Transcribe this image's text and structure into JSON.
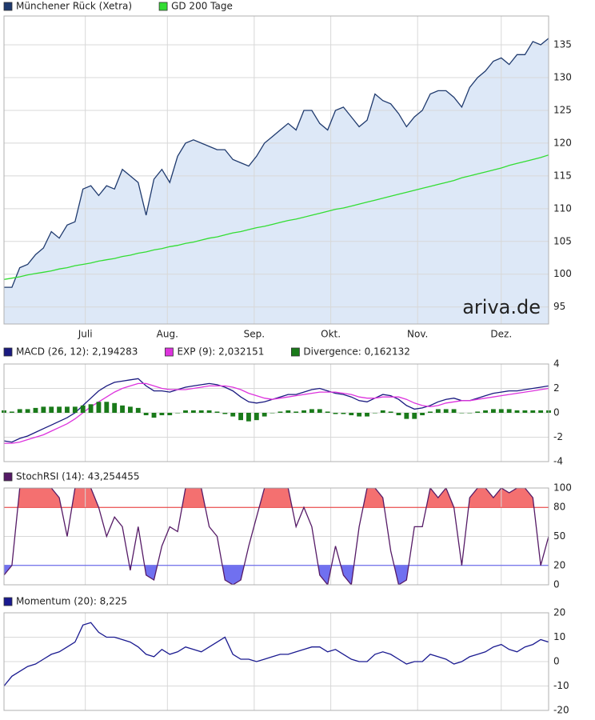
{
  "chart_data": [
    {
      "type": "line",
      "x": [
        0,
        1,
        2,
        3,
        4,
        5,
        6,
        7,
        8,
        9,
        10,
        11,
        12,
        13,
        14,
        15,
        16,
        17,
        18,
        19,
        20,
        21,
        22,
        23,
        24,
        25,
        26,
        27,
        28,
        29,
        30,
        31,
        32,
        33,
        34,
        35,
        36,
        37,
        38,
        39,
        40,
        41,
        42,
        43,
        44,
        45,
        46,
        47,
        48,
        49,
        50,
        51,
        52,
        53,
        54,
        55,
        56,
        57,
        58,
        59,
        60,
        61,
        62,
        63,
        64,
        65,
        66,
        67,
        68,
        69
      ],
      "xlim": [
        0,
        69
      ],
      "xticks": [
        {
          "value": 10.3,
          "label": "Juli"
        },
        {
          "value": 20.7,
          "label": "Aug."
        },
        {
          "value": 31.7,
          "label": "Sep."
        },
        {
          "value": 41.4,
          "label": "Okt."
        },
        {
          "value": 52.4,
          "label": "Nov."
        },
        {
          "value": 63.0,
          "label": "Dez."
        }
      ],
      "ylim": [
        92.4,
        139.4
      ],
      "yticks": [
        95,
        100,
        105,
        110,
        115,
        120,
        125,
        130,
        135
      ],
      "grid": true,
      "annotation": "ariva.de",
      "series": [
        {
          "name": "Münchener Rück (Xetra)",
          "color": "#1f3a6e",
          "fill": "#dde8f7",
          "values": [
            98,
            98,
            101,
            101.5,
            103,
            104,
            106.5,
            105.5,
            107.5,
            108,
            113,
            113.5,
            112,
            113.5,
            113,
            116,
            115,
            114,
            109,
            114.5,
            116,
            114,
            118,
            120,
            120.5,
            120,
            119.5,
            119,
            119,
            117.5,
            117,
            116.5,
            118,
            120,
            121,
            122,
            123,
            122,
            125,
            125,
            123,
            122,
            125,
            125.5,
            124,
            122.5,
            123.5,
            127.5,
            126.5,
            126,
            124.5,
            122.5,
            124,
            125,
            127.5,
            128,
            128,
            127,
            125.5,
            128.5,
            130,
            131,
            132.5,
            133,
            132,
            133.5,
            133.5,
            135.5,
            135,
            136
          ]
        },
        {
          "name": "GD 200 Tage",
          "color": "#33dd33",
          "values": [
            99.2,
            99.4,
            99.6,
            99.9,
            100.1,
            100.3,
            100.5,
            100.8,
            101.0,
            101.3,
            101.5,
            101.7,
            102.0,
            102.2,
            102.4,
            102.7,
            102.9,
            103.2,
            103.4,
            103.7,
            103.9,
            104.2,
            104.4,
            104.7,
            104.9,
            105.2,
            105.5,
            105.7,
            106.0,
            106.3,
            106.5,
            106.8,
            107.1,
            107.3,
            107.6,
            107.9,
            108.2,
            108.4,
            108.7,
            109.0,
            109.3,
            109.6,
            109.9,
            110.1,
            110.4,
            110.7,
            111.0,
            111.3,
            111.6,
            111.9,
            112.2,
            112.5,
            112.8,
            113.1,
            113.4,
            113.7,
            114.0,
            114.3,
            114.7,
            115.0,
            115.3,
            115.6,
            115.9,
            116.2,
            116.6,
            116.9,
            117.2,
            117.5,
            117.8,
            118.2
          ]
        }
      ]
    },
    {
      "type": "line",
      "x": [
        0,
        1,
        2,
        3,
        4,
        5,
        6,
        7,
        8,
        9,
        10,
        11,
        12,
        13,
        14,
        15,
        16,
        17,
        18,
        19,
        20,
        21,
        22,
        23,
        24,
        25,
        26,
        27,
        28,
        29,
        30,
        31,
        32,
        33,
        34,
        35,
        36,
        37,
        38,
        39,
        40,
        41,
        42,
        43,
        44,
        45,
        46,
        47,
        48,
        49,
        50,
        51,
        52,
        53,
        54,
        55,
        56,
        57,
        58,
        59,
        60,
        61,
        62,
        63,
        64,
        65,
        66,
        67,
        68,
        69
      ],
      "xlim": [
        0,
        69
      ],
      "xgrid": [
        10.3,
        20.7,
        31.7,
        41.4,
        52.4,
        63.0
      ],
      "ylim": [
        -4,
        4
      ],
      "yticks": [
        -4,
        -2,
        0,
        2,
        4
      ],
      "grid": true,
      "series": [
        {
          "name": "MACD (26, 12): 2,194283",
          "color": "#1a1a80",
          "values": [
            -2.3,
            -2.4,
            -2.1,
            -1.9,
            -1.6,
            -1.3,
            -1.0,
            -0.7,
            -0.4,
            0.0,
            0.6,
            1.2,
            1.8,
            2.2,
            2.5,
            2.6,
            2.7,
            2.8,
            2.2,
            1.8,
            1.8,
            1.7,
            1.9,
            2.1,
            2.2,
            2.3,
            2.4,
            2.3,
            2.1,
            1.8,
            1.3,
            0.9,
            0.8,
            0.9,
            1.1,
            1.3,
            1.5,
            1.5,
            1.7,
            1.9,
            2.0,
            1.8,
            1.6,
            1.5,
            1.3,
            1.0,
            0.9,
            1.2,
            1.5,
            1.4,
            1.1,
            0.6,
            0.3,
            0.4,
            0.6,
            0.9,
            1.1,
            1.2,
            1.0,
            1.0,
            1.2,
            1.4,
            1.6,
            1.7,
            1.8,
            1.8,
            1.9,
            2.0,
            2.1,
            2.2
          ]
        },
        {
          "name": "EXP (9): 2,032151",
          "color": "#dd33dd",
          "values": [
            -2.5,
            -2.5,
            -2.4,
            -2.2,
            -2.0,
            -1.8,
            -1.5,
            -1.2,
            -0.9,
            -0.5,
            0.0,
            0.5,
            0.9,
            1.3,
            1.7,
            2.0,
            2.2,
            2.4,
            2.4,
            2.2,
            2.0,
            1.9,
            1.9,
            1.9,
            2.0,
            2.1,
            2.2,
            2.2,
            2.2,
            2.1,
            1.9,
            1.6,
            1.4,
            1.2,
            1.1,
            1.2,
            1.3,
            1.4,
            1.5,
            1.6,
            1.7,
            1.7,
            1.7,
            1.6,
            1.5,
            1.3,
            1.2,
            1.2,
            1.3,
            1.3,
            1.3,
            1.1,
            0.8,
            0.6,
            0.5,
            0.6,
            0.8,
            0.9,
            1.0,
            1.0,
            1.1,
            1.2,
            1.3,
            1.4,
            1.5,
            1.6,
            1.7,
            1.8,
            1.9,
            2.0
          ]
        },
        {
          "name": "Divergence: 0,162132",
          "color": "#1a7a1a",
          "kind": "bar",
          "values": [
            0.2,
            0.1,
            0.3,
            0.3,
            0.4,
            0.5,
            0.5,
            0.5,
            0.5,
            0.5,
            0.6,
            0.7,
            0.9,
            0.9,
            0.8,
            0.6,
            0.5,
            0.4,
            -0.2,
            -0.4,
            -0.2,
            -0.2,
            0.0,
            0.2,
            0.2,
            0.2,
            0.2,
            0.1,
            -0.1,
            -0.3,
            -0.6,
            -0.7,
            -0.6,
            -0.3,
            0.0,
            0.1,
            0.2,
            0.1,
            0.2,
            0.3,
            0.3,
            0.1,
            -0.1,
            -0.1,
            -0.2,
            -0.3,
            -0.3,
            0.0,
            0.2,
            0.1,
            -0.2,
            -0.5,
            -0.5,
            -0.2,
            0.1,
            0.3,
            0.3,
            0.3,
            0.0,
            0.0,
            0.1,
            0.2,
            0.3,
            0.3,
            0.3,
            0.2,
            0.2,
            0.2,
            0.2,
            0.2
          ]
        }
      ]
    },
    {
      "type": "line",
      "x": [
        0,
        1,
        2,
        3,
        4,
        5,
        6,
        7,
        8,
        9,
        10,
        11,
        12,
        13,
        14,
        15,
        16,
        17,
        18,
        19,
        20,
        21,
        22,
        23,
        24,
        25,
        26,
        27,
        28,
        29,
        30,
        31,
        32,
        33,
        34,
        35,
        36,
        37,
        38,
        39,
        40,
        41,
        42,
        43,
        44,
        45,
        46,
        47,
        48,
        49,
        50,
        51,
        52,
        53,
        54,
        55,
        56,
        57,
        58,
        59,
        60,
        61,
        62,
        63,
        64,
        65,
        66,
        67,
        68,
        69
      ],
      "xlim": [
        0,
        69
      ],
      "xgrid": [
        10.3,
        20.7,
        31.7,
        41.4,
        52.4,
        63.0
      ],
      "ylim": [
        0,
        100
      ],
      "yticks": [
        0,
        20,
        50,
        80,
        100
      ],
      "grid": true,
      "bands": [
        {
          "value": 80,
          "side": "above",
          "color": "#ee3333",
          "fill": "#f47070"
        },
        {
          "value": 20,
          "side": "below",
          "color": "#5555ee",
          "fill": "#7070f0"
        }
      ],
      "series": [
        {
          "name": "StochRSI (14): 43,254455",
          "color": "#551a66",
          "values": [
            10,
            20,
            100,
            100,
            100,
            100,
            100,
            90,
            50,
            100,
            100,
            100,
            80,
            50,
            70,
            60,
            15,
            60,
            10,
            5,
            40,
            60,
            55,
            100,
            100,
            100,
            60,
            50,
            5,
            0,
            5,
            40,
            70,
            100,
            100,
            100,
            100,
            60,
            80,
            60,
            10,
            0,
            40,
            10,
            0,
            60,
            100,
            100,
            90,
            35,
            0,
            5,
            60,
            60,
            100,
            90,
            100,
            80,
            20,
            90,
            100,
            100,
            90,
            100,
            95,
            100,
            100,
            90,
            20,
            50
          ]
        }
      ]
    },
    {
      "type": "line",
      "x": [
        0,
        1,
        2,
        3,
        4,
        5,
        6,
        7,
        8,
        9,
        10,
        11,
        12,
        13,
        14,
        15,
        16,
        17,
        18,
        19,
        20,
        21,
        22,
        23,
        24,
        25,
        26,
        27,
        28,
        29,
        30,
        31,
        32,
        33,
        34,
        35,
        36,
        37,
        38,
        39,
        40,
        41,
        42,
        43,
        44,
        45,
        46,
        47,
        48,
        49,
        50,
        51,
        52,
        53,
        54,
        55,
        56,
        57,
        58,
        59,
        60,
        61,
        62,
        63,
        64,
        65,
        66,
        67,
        68,
        69
      ],
      "xlim": [
        0,
        69
      ],
      "xgrid": [
        10.3,
        20.7,
        31.7,
        41.4,
        52.4,
        63.0
      ],
      "ylim": [
        -20,
        20
      ],
      "yticks": [
        -20,
        -10,
        0,
        10,
        20
      ],
      "grid": true,
      "series": [
        {
          "name": "Momentum (20): 8,225",
          "color": "#1a1a90",
          "values": [
            -10,
            -6,
            -4,
            -2,
            -1,
            1,
            3,
            4,
            6,
            8,
            15,
            16,
            12,
            10,
            10,
            9,
            8,
            6,
            3,
            2,
            5,
            3,
            4,
            6,
            5,
            4,
            6,
            8,
            10,
            3,
            1,
            1,
            0,
            1,
            2,
            3,
            3,
            4,
            5,
            6,
            6,
            4,
            5,
            3,
            1,
            0,
            0,
            3,
            4,
            3,
            1,
            -1,
            0,
            0,
            3,
            2,
            1,
            -1,
            0,
            2,
            3,
            4,
            6,
            7,
            5,
            4,
            6,
            7,
            9,
            8
          ]
        }
      ]
    }
  ]
}
